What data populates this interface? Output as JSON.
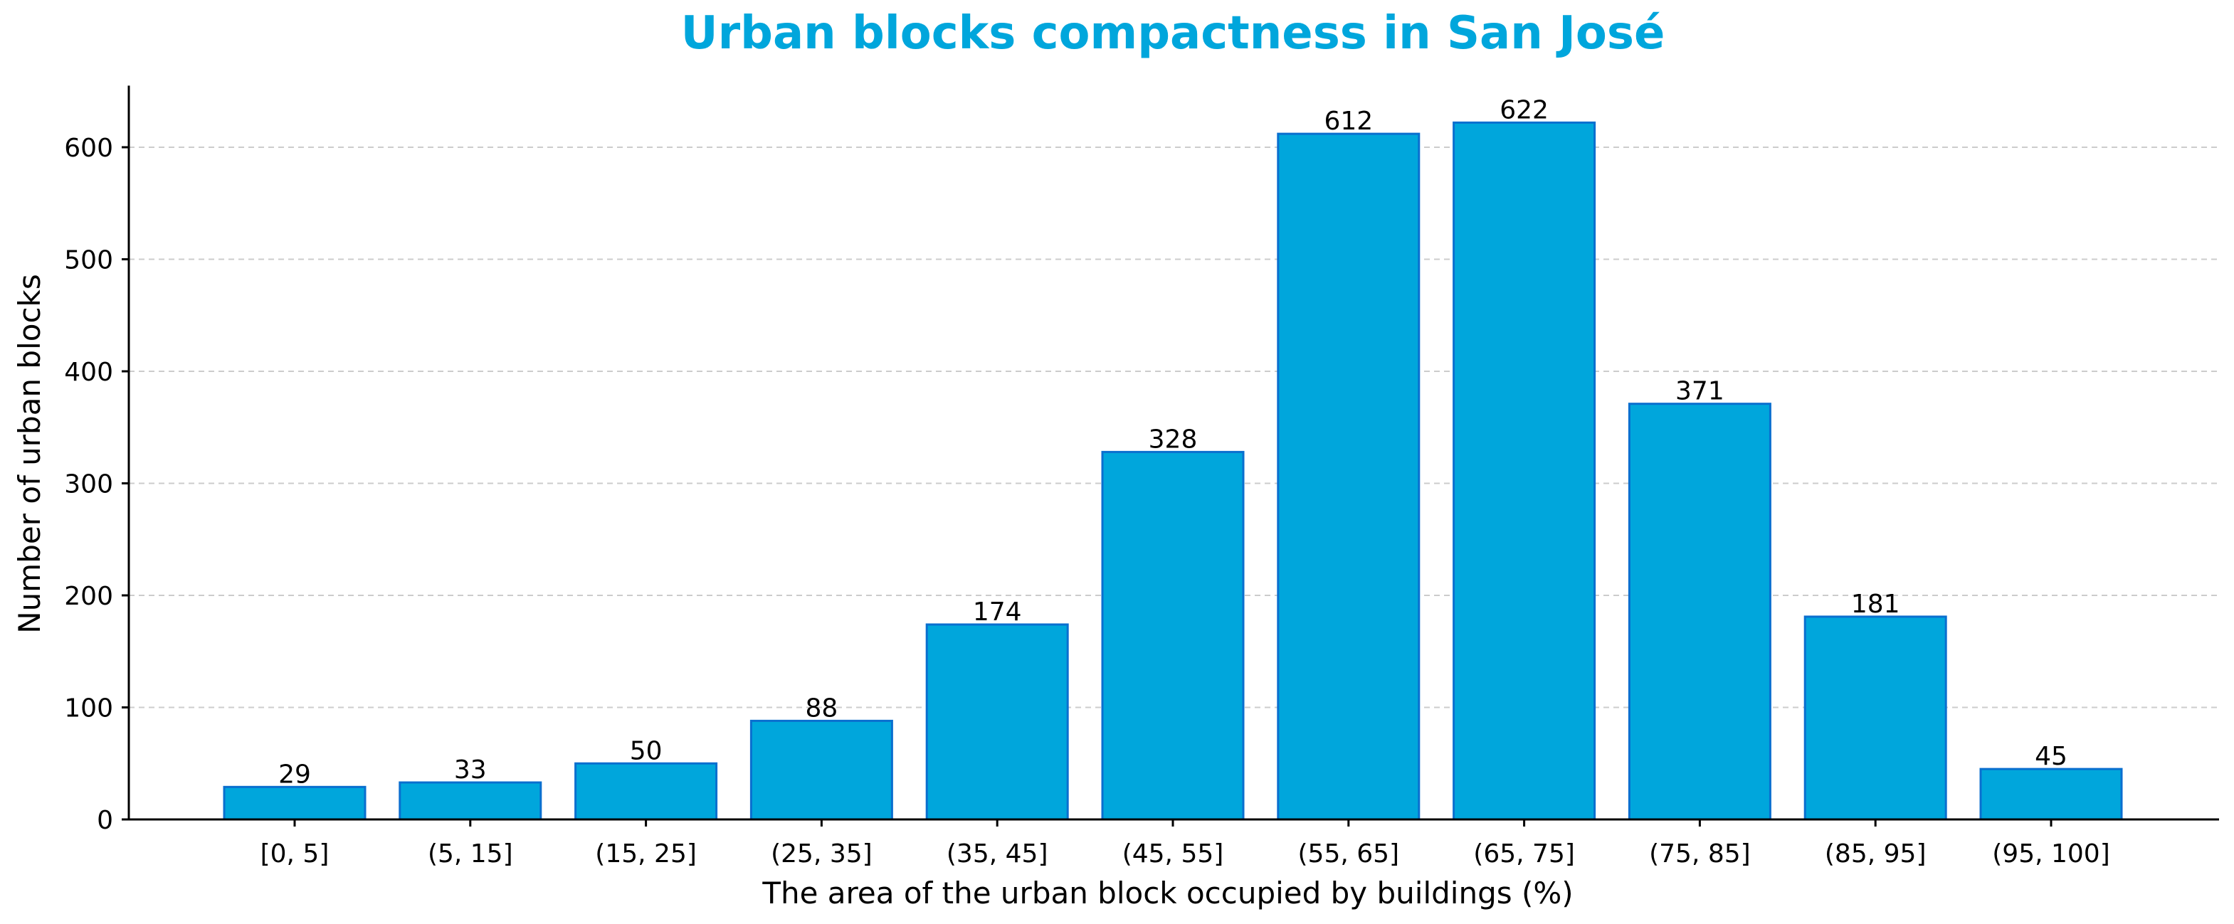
{
  "chart_data": {
    "type": "bar",
    "title": "Urban blocks compactness in San José",
    "xlabel": "The area of the urban block occupied by buildings (%)",
    "ylabel": "Number of urban blocks",
    "categories": [
      "[0, 5]",
      "(5, 15]",
      "(15, 25]",
      "(25, 35]",
      "(35, 45]",
      "(45, 55]",
      "(55, 65]",
      "(65, 75]",
      "(75, 85]",
      "(85, 95]",
      "(95, 100]"
    ],
    "values": [
      29,
      33,
      50,
      88,
      174,
      328,
      612,
      622,
      371,
      181,
      45
    ],
    "ylim": [
      0,
      655
    ],
    "yticks": [
      0,
      100,
      200,
      300,
      400,
      500,
      600
    ],
    "grid": "horizontal dashed",
    "colors": {
      "title": "#00a6dc",
      "bar_fill": "#00a6dc",
      "bar_edge": "#0a6fcf"
    }
  }
}
